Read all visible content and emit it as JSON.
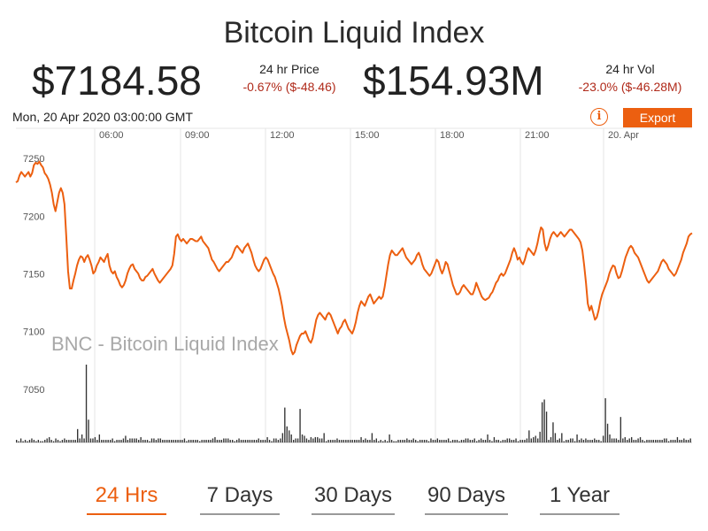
{
  "header": {
    "title": "Bitcoin Liquid Index",
    "price": "$7184.58",
    "price_label": "24 hr Price",
    "price_change": "-0.67% ($-48.46)",
    "volume": "$154.93M",
    "volume_label": "24 hr Vol",
    "volume_change": "-23.0% ($-46.28M)"
  },
  "timestamp": "Mon, 20 Apr 2020 03:00:00 GMT",
  "toolbar": {
    "info_icon": "info-icon",
    "export_label": "Export"
  },
  "colors": {
    "accent": "#ec5f10",
    "negative": "#b02a1a",
    "grid": "#e6e6e6",
    "volume": "#333333"
  },
  "chart_data": {
    "type": "line",
    "watermark": "BNC - Bitcoin Liquid Index",
    "x_tick_labels": [
      "06:00",
      "09:00",
      "12:00",
      "15:00",
      "18:00",
      "21:00",
      "20. Apr"
    ],
    "y_ticks": [
      7050,
      7100,
      7150,
      7200,
      7250
    ],
    "ylim": [
      7020,
      7280
    ],
    "grid": true,
    "series": [
      {
        "values": [
          7237,
          7238,
          7243,
          7246,
          7244,
          7242,
          7244,
          7246,
          7242,
          7245,
          7252,
          7254,
          7253,
          7255,
          7252,
          7250,
          7245,
          7243,
          7240,
          7235,
          7228,
          7218,
          7212,
          7220,
          7228,
          7232,
          7228,
          7218,
          7190,
          7160,
          7145,
          7145,
          7152,
          7158,
          7165,
          7170,
          7173,
          7172,
          7168,
          7172,
          7174,
          7170,
          7165,
          7158,
          7160,
          7165,
          7168,
          7172,
          7170,
          7168,
          7172,
          7175,
          7165,
          7160,
          7158,
          7160,
          7155,
          7152,
          7148,
          7146,
          7148,
          7152,
          7158,
          7162,
          7165,
          7166,
          7162,
          7160,
          7158,
          7154,
          7152,
          7152,
          7155,
          7156,
          7158,
          7160,
          7162,
          7158,
          7155,
          7152,
          7150,
          7152,
          7154,
          7156,
          7158,
          7160,
          7162,
          7165,
          7175,
          7190,
          7192,
          7188,
          7186,
          7188,
          7186,
          7184,
          7186,
          7188,
          7188,
          7187,
          7186,
          7186,
          7188,
          7190,
          7186,
          7184,
          7182,
          7180,
          7175,
          7170,
          7168,
          7165,
          7162,
          7160,
          7162,
          7164,
          7166,
          7168,
          7168,
          7170,
          7172,
          7176,
          7180,
          7182,
          7180,
          7178,
          7176,
          7180,
          7182,
          7184,
          7180,
          7176,
          7170,
          7165,
          7162,
          7160,
          7162,
          7166,
          7170,
          7172,
          7170,
          7166,
          7162,
          7158,
          7155,
          7150,
          7145,
          7138,
          7130,
          7120,
          7112,
          7106,
          7100,
          7092,
          7088,
          7090,
          7096,
          7100,
          7104,
          7106,
          7106,
          7108,
          7104,
          7100,
          7098,
          7102,
          7110,
          7118,
          7122,
          7124,
          7122,
          7120,
          7118,
          7122,
          7124,
          7122,
          7118,
          7114,
          7110,
          7106,
          7110,
          7112,
          7116,
          7118,
          7114,
          7110,
          7108,
          7106,
          7110,
          7116,
          7124,
          7130,
          7134,
          7132,
          7130,
          7134,
          7138,
          7140,
          7136,
          7132,
          7134,
          7136,
          7138,
          7136,
          7138,
          7146,
          7156,
          7166,
          7174,
          7178,
          7176,
          7174,
          7174,
          7176,
          7178,
          7180,
          7176,
          7172,
          7170,
          7168,
          7166,
          7168,
          7170,
          7174,
          7176,
          7172,
          7166,
          7162,
          7160,
          7158,
          7156,
          7158,
          7162,
          7166,
          7170,
          7168,
          7162,
          7158,
          7162,
          7168,
          7166,
          7160,
          7154,
          7148,
          7144,
          7140,
          7140,
          7142,
          7146,
          7148,
          7146,
          7144,
          7142,
          7140,
          7140,
          7144,
          7150,
          7146,
          7142,
          7138,
          7136,
          7135,
          7136,
          7137,
          7140,
          7142,
          7146,
          7150,
          7152,
          7156,
          7158,
          7156,
          7158,
          7162,
          7166,
          7170,
          7176,
          7180,
          7176,
          7170,
          7172,
          7168,
          7166,
          7170,
          7176,
          7180,
          7178,
          7176,
          7174,
          7178,
          7184,
          7192,
          7198,
          7196,
          7184,
          7178,
          7182,
          7188,
          7192,
          7194,
          7192,
          7190,
          7192,
          7194,
          7192,
          7190,
          7192,
          7194,
          7196,
          7196,
          7194,
          7192,
          7190,
          7188,
          7185,
          7178,
          7165,
          7150,
          7132,
          7126,
          7130,
          7124,
          7118,
          7120,
          7126,
          7134,
          7140,
          7144,
          7148,
          7152,
          7158,
          7162,
          7165,
          7164,
          7158,
          7154,
          7155,
          7160,
          7166,
          7172,
          7176,
          7180,
          7182,
          7180,
          7176,
          7174,
          7172,
          7168,
          7164,
          7160,
          7156,
          7152,
          7150,
          7152,
          7154,
          7156,
          7158,
          7160,
          7164,
          7168,
          7170,
          7168,
          7166,
          7162,
          7160,
          7158,
          7156,
          7158,
          7162,
          7166,
          7170,
          7176,
          7180,
          7184,
          7190,
          7192,
          7193
        ]
      }
    ],
    "volume_bars": [
      2,
      1,
      3,
      1,
      2,
      1,
      2,
      3,
      2,
      1,
      2,
      1,
      1,
      2,
      3,
      4,
      2,
      1,
      3,
      2,
      1,
      2,
      3,
      2,
      2,
      2,
      2,
      2,
      10,
      3,
      6,
      3,
      58,
      17,
      3,
      3,
      4,
      2,
      6,
      2,
      2,
      2,
      2,
      2,
      3,
      1,
      2,
      2,
      2,
      3,
      5,
      2,
      3,
      3,
      3,
      3,
      2,
      4,
      2,
      2,
      2,
      1,
      3,
      3,
      2,
      3,
      3,
      2,
      2,
      2,
      2,
      2,
      2,
      2,
      2,
      2,
      2,
      3,
      1,
      2,
      2,
      2,
      2,
      2,
      1,
      2,
      2,
      2,
      2,
      2,
      3,
      4,
      2,
      2,
      2,
      3,
      3,
      3,
      2,
      2,
      1,
      2,
      3,
      2,
      2,
      2,
      2,
      2,
      2,
      2,
      2,
      3,
      2,
      2,
      2,
      4,
      2,
      1,
      3,
      3,
      2,
      3,
      7,
      26,
      12,
      9,
      6,
      2,
      3,
      3,
      25,
      6,
      5,
      3,
      2,
      4,
      3,
      4,
      4,
      3,
      3,
      7,
      1,
      2,
      2,
      2,
      2,
      3,
      2,
      2,
      2,
      2,
      2,
      2,
      2,
      2,
      2,
      2,
      4,
      2,
      3,
      2,
      2,
      7,
      2,
      3,
      1,
      2,
      1,
      2,
      1,
      6,
      2,
      1,
      1,
      2,
      2,
      2,
      2,
      3,
      2,
      2,
      3,
      2,
      1,
      2,
      2,
      2,
      2,
      1,
      3,
      2,
      2,
      3,
      2,
      2,
      2,
      2,
      3,
      1,
      2,
      2,
      2,
      1,
      2,
      2,
      3,
      3,
      2,
      2,
      3,
      1,
      2,
      3,
      2,
      2,
      6,
      2,
      1,
      4,
      2,
      2,
      1,
      2,
      2,
      3,
      3,
      2,
      2,
      3,
      1,
      2,
      2,
      2,
      3,
      9,
      3,
      4,
      5,
      3,
      8,
      30,
      32,
      23,
      2,
      4,
      15,
      7,
      2,
      3,
      7,
      1,
      2,
      2,
      3,
      3,
      1,
      6,
      2,
      3,
      2,
      3,
      2,
      2,
      2,
      3,
      2,
      2,
      1,
      5,
      33,
      14,
      6,
      3,
      3,
      3,
      2,
      19,
      3,
      4,
      2,
      3,
      4,
      2,
      2,
      3,
      4,
      2,
      1,
      2,
      2,
      2,
      2,
      2,
      2,
      2,
      2,
      3,
      3,
      1,
      2,
      2,
      2,
      4,
      2,
      2,
      3,
      2,
      2,
      3
    ]
  },
  "time_ranges": [
    {
      "label": "24 Hrs",
      "active": true
    },
    {
      "label": "7 Days",
      "active": false
    },
    {
      "label": "30 Days",
      "active": false
    },
    {
      "label": "90 Days",
      "active": false
    },
    {
      "label": "1 Year",
      "active": false
    }
  ]
}
